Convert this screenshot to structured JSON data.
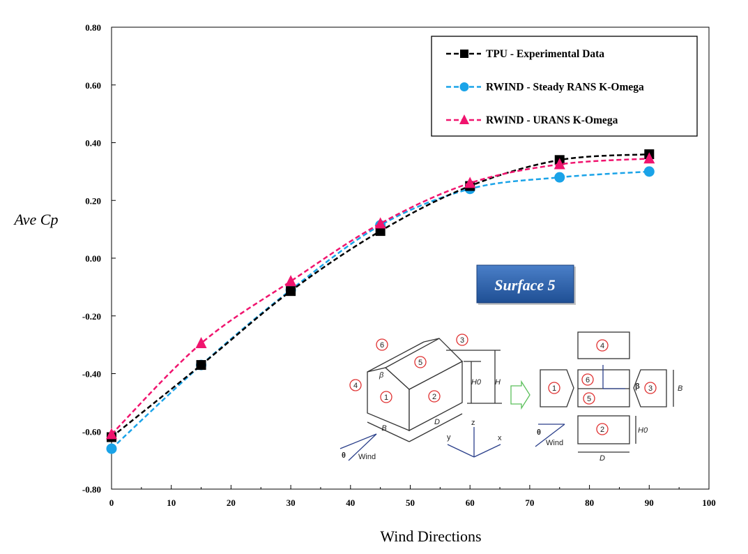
{
  "chart_data": {
    "type": "line",
    "title": "",
    "xlabel": "Wind Directions",
    "ylabel": "Ave Cp",
    "xlim": [
      0,
      100
    ],
    "ylim": [
      -0.8,
      0.8
    ],
    "xticks": [
      "0",
      "10",
      "20",
      "30",
      "40",
      "50",
      "60",
      "70",
      "80",
      "90",
      "100"
    ],
    "yticks": [
      "0.80",
      "0.60",
      "0.40",
      "0.20",
      "0.00",
      "-0.20",
      "-0.40",
      "-0.60",
      "-0.80"
    ],
    "grid": false,
    "legend_position": "top-right",
    "x": [
      0,
      15,
      30,
      45,
      60,
      75,
      90
    ],
    "series": [
      {
        "name": "TPU - Experimental Data",
        "color": "#000000",
        "marker": "square",
        "values": [
          -0.62,
          -0.37,
          -0.114,
          0.094,
          0.25,
          0.34,
          0.36
        ]
      },
      {
        "name": "RWIND - Steady RANS K-Omega",
        "color": "#1aa3e8",
        "marker": "circle",
        "values": [
          -0.66,
          -0.37,
          -0.11,
          0.114,
          0.24,
          0.28,
          0.3
        ]
      },
      {
        "name": "RWIND - URANS K-Omega",
        "color": "#f0146e",
        "marker": "triangle",
        "values": [
          -0.61,
          -0.295,
          -0.08,
          0.12,
          0.26,
          0.325,
          0.345
        ]
      }
    ]
  },
  "badge": {
    "label": "Surface 5",
    "color": "#2a5fa8"
  },
  "diagram": {
    "faces": [
      "1",
      "2",
      "3",
      "4",
      "5",
      "6"
    ],
    "dims": {
      "B": "B",
      "D": "D",
      "H": "H",
      "H0": "H0"
    },
    "wind": "Wind",
    "theta": "θ",
    "beta": "β",
    "axes": {
      "x": "x",
      "y": "y",
      "z": "z"
    }
  }
}
